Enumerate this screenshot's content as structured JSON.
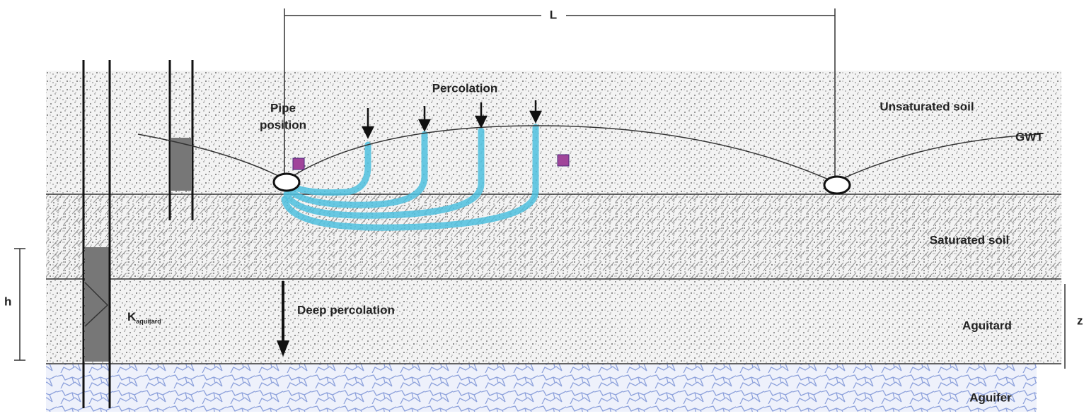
{
  "labels": {
    "length": "L",
    "percolation": "Percolation",
    "pipe_position": [
      "Pipe",
      "position"
    ],
    "unsaturated": "Unsaturated soil",
    "gwt": "GWT",
    "saturated": "Saturated soil",
    "h": "h",
    "k": "K",
    "k_sub": "aquitard",
    "deep_percolation": "Deep percolation",
    "aquitard": "Aguitard",
    "aquifer": "Aguifer",
    "z": "z"
  }
}
